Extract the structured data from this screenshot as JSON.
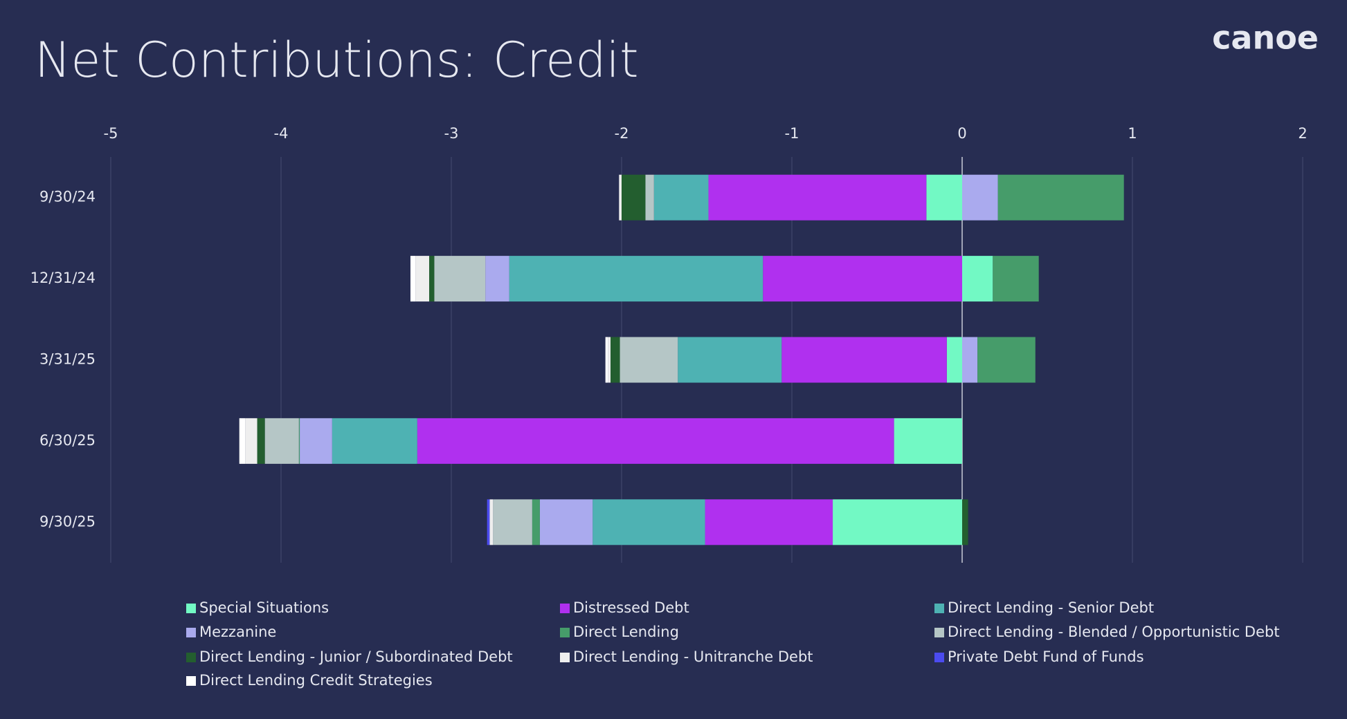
{
  "chart_data": {
    "type": "diverging_stacked_bar",
    "title": "Net Contributions: Credit",
    "logo": "canoe",
    "categories": [
      "9/30/24",
      "12/31/24",
      "3/31/25",
      "6/30/25",
      "9/30/25"
    ],
    "xlim": [
      -5,
      2
    ],
    "xticks": [
      -5,
      -4,
      -3,
      -2,
      -1,
      0,
      1,
      2
    ],
    "grid": true,
    "series": [
      {
        "name": "Special Situations",
        "color": "#72f9c4",
        "values": [
          -0.21,
          0.18,
          -0.09,
          -0.4,
          -0.76
        ]
      },
      {
        "name": "Distressed Debt",
        "color": "#b030ef",
        "values": [
          -1.28,
          -1.17,
          -0.97,
          -2.8,
          -0.75
        ]
      },
      {
        "name": "Direct Lending - Senior Debt",
        "color": "#4eb2b3",
        "values": [
          -0.32,
          -1.49,
          -0.61,
          -0.5,
          -0.66
        ]
      },
      {
        "name": "Mezzanine",
        "color": "#aaaaee",
        "values": [
          0.21,
          -0.14,
          0.09,
          -0.19,
          -0.31
        ]
      },
      {
        "name": "Direct Lending",
        "color": "#469c6a",
        "values": [
          0.74,
          0.27,
          0.34,
          -0.005,
          -0.045
        ]
      },
      {
        "name": "Direct Lending - Blended / Opportunistic Debt",
        "color": "#b5c6c6",
        "values": [
          -0.05,
          -0.3,
          -0.34,
          -0.2,
          -0.23
        ]
      },
      {
        "name": "Direct Lending - Junior / Subordinated Debt",
        "color": "#235e2f",
        "values": [
          -0.14,
          -0.03,
          -0.055,
          -0.045,
          0.035
        ]
      },
      {
        "name": "Direct Lending - Unitranche Debt",
        "color": "#eeeeee",
        "values": [
          -0.015,
          -0.08,
          -0.015,
          -0.07,
          -0.02
        ]
      },
      {
        "name": "Private Debt Fund of Funds",
        "color": "#4b4bef",
        "values": [
          0,
          0,
          0,
          0,
          -0.015
        ]
      },
      {
        "name": "Direct Lending Credit Strategies",
        "color": "#ffffff",
        "values": [
          0,
          -0.03,
          -0.015,
          -0.035,
          0
        ]
      }
    ]
  }
}
